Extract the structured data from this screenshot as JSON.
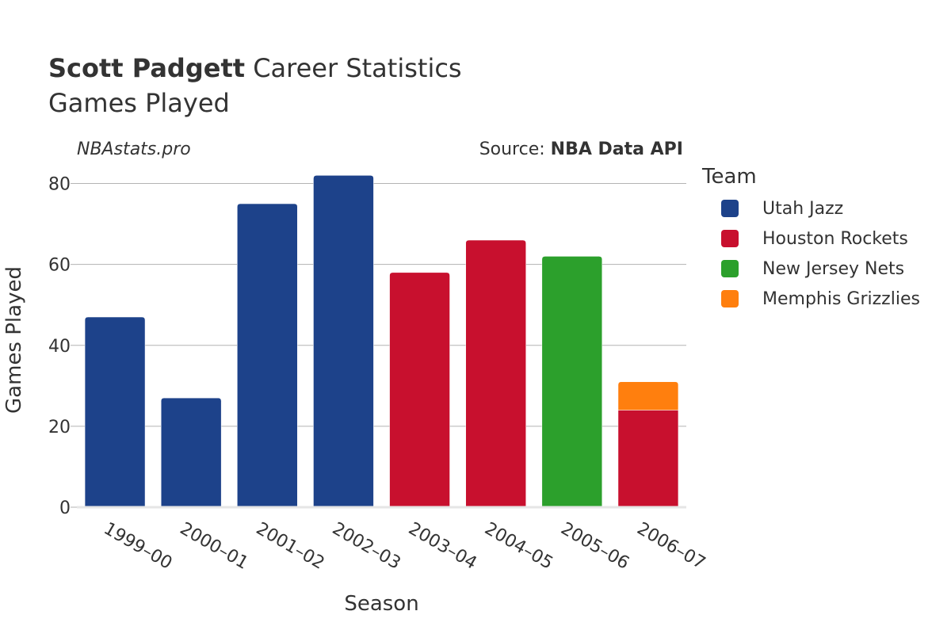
{
  "header": {
    "player_name": "Scott Padgett",
    "title_rest": " Career Statistics",
    "subtitle": "Games Played"
  },
  "watermark": "NBAstats.pro",
  "source": {
    "prefix": "Source: ",
    "name": "NBA Data API"
  },
  "legend": {
    "title": "Team",
    "items": [
      {
        "label": "Utah Jazz",
        "color": "#1d428a"
      },
      {
        "label": "Houston Rockets",
        "color": "#c8102e"
      },
      {
        "label": "New Jersey Nets",
        "color": "#2ca02c"
      },
      {
        "label": "Memphis Grizzlies",
        "color": "#ff7f0e"
      }
    ]
  },
  "chart_data": {
    "type": "bar",
    "stacked": true,
    "categories": [
      "1999–00",
      "2000–01",
      "2001–02",
      "2002–03",
      "2003–04",
      "2004–05",
      "2005–06",
      "2006–07"
    ],
    "series": [
      {
        "name": "Utah Jazz",
        "color": "#1d428a",
        "values": [
          47,
          27,
          75,
          82,
          0,
          0,
          0,
          0
        ]
      },
      {
        "name": "Houston Rockets",
        "color": "#c8102e",
        "values": [
          0,
          0,
          0,
          0,
          58,
          66,
          0,
          24
        ]
      },
      {
        "name": "New Jersey Nets",
        "color": "#2ca02c",
        "values": [
          0,
          0,
          0,
          0,
          0,
          0,
          62,
          0
        ]
      },
      {
        "name": "Memphis Grizzlies",
        "color": "#ff7f0e",
        "values": [
          0,
          0,
          0,
          0,
          0,
          0,
          0,
          7
        ]
      }
    ],
    "xlabel": "Season",
    "ylabel": "Games Played",
    "ylim": [
      0,
      85
    ],
    "yticks": [
      0,
      20,
      40,
      60,
      80
    ],
    "grid": true,
    "legend_position": "right"
  }
}
